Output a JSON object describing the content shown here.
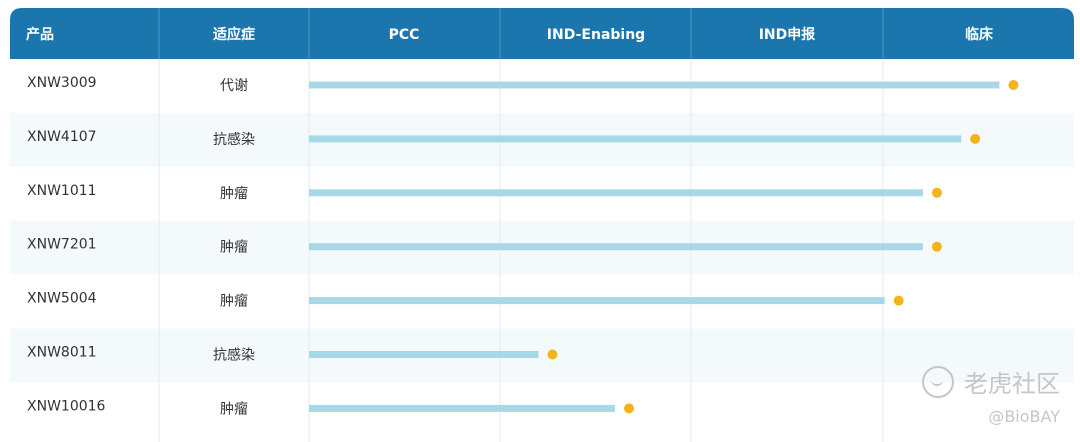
{
  "header": {
    "product": "产品",
    "indication": "适应症",
    "stages": [
      "PCC",
      "IND-Enabing",
      "IND申报",
      "临床"
    ]
  },
  "colors": {
    "header_bg": "#1b76ad",
    "bar": "#a8d8e8",
    "dot": "#f3b31c",
    "row_alt": "#f4f9fc",
    "grid": "#e3ebf1"
  },
  "chart_data": {
    "type": "bar",
    "orientation": "horizontal",
    "stage_labels": [
      "PCC",
      "IND-Enabing",
      "IND申报",
      "临床"
    ],
    "x_units": "development stages (0 = start of PCC, 4 = end of 临床)",
    "xlim": [
      0,
      4
    ],
    "rows": [
      {
        "product": "XNW3009",
        "indication": "代谢",
        "progress": 3.61
      },
      {
        "product": "XNW4107",
        "indication": "抗感染",
        "progress": 3.41
      },
      {
        "product": "XNW1011",
        "indication": "肿瘤",
        "progress": 3.21
      },
      {
        "product": "XNW7201",
        "indication": "肿瘤",
        "progress": 3.21
      },
      {
        "product": "XNW5004",
        "indication": "肿瘤",
        "progress": 3.01
      },
      {
        "product": "XNW8011",
        "indication": "抗感染",
        "progress": 1.2
      },
      {
        "product": "XNW10016",
        "indication": "肿瘤",
        "progress": 1.6
      }
    ]
  },
  "watermark": {
    "main": "老虎社区",
    "sub": "@BioBAY"
  }
}
